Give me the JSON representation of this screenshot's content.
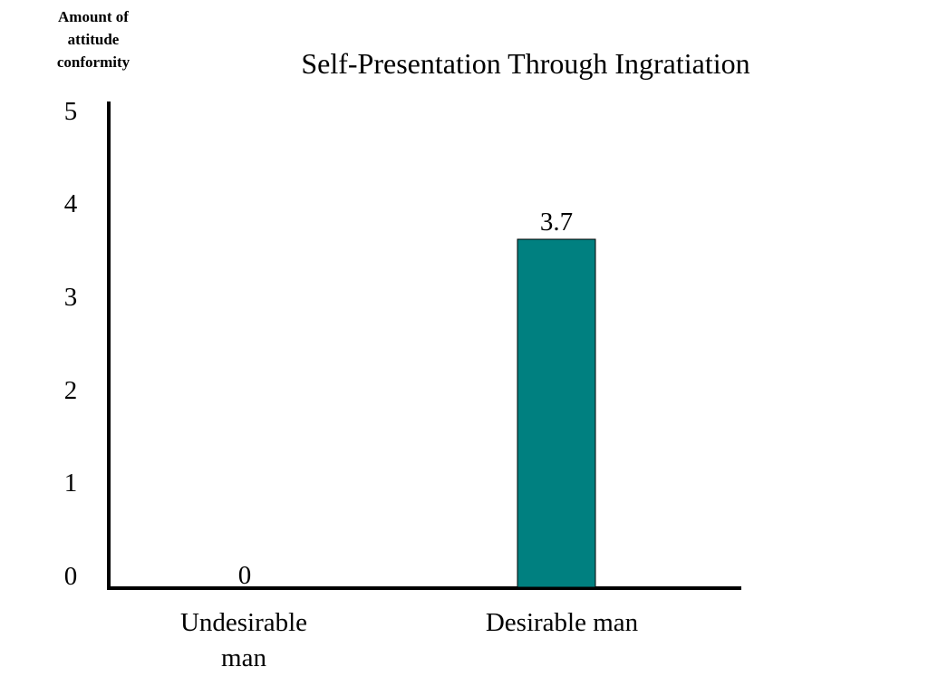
{
  "chart_data": {
    "type": "bar",
    "title": "Self-Presentation Through Ingratiation",
    "ylabel": "Amount of\nattitude\nconformity",
    "xlabel": "",
    "categories": [
      "Undesirable\nman",
      "Desirable man"
    ],
    "values": [
      0,
      3.7
    ],
    "data_labels": [
      "0",
      "3.7"
    ],
    "ylim": [
      0,
      5
    ],
    "yticks": [
      "0",
      "1",
      "2",
      "3",
      "4",
      "5"
    ],
    "grid": false,
    "legend": "none",
    "bar_color": "#008080"
  }
}
